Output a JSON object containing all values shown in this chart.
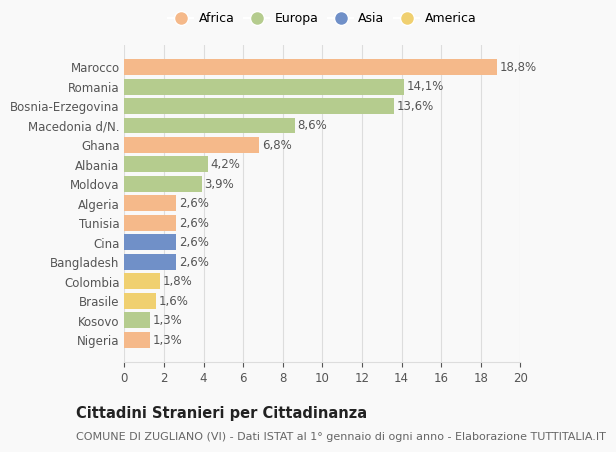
{
  "countries": [
    "Marocco",
    "Romania",
    "Bosnia-Erzegovina",
    "Macedonia d/N.",
    "Ghana",
    "Albania",
    "Moldova",
    "Algeria",
    "Tunisia",
    "Cina",
    "Bangladesh",
    "Colombia",
    "Brasile",
    "Kosovo",
    "Nigeria"
  ],
  "values": [
    18.8,
    14.1,
    13.6,
    8.6,
    6.8,
    4.2,
    3.9,
    2.6,
    2.6,
    2.6,
    2.6,
    1.8,
    1.6,
    1.3,
    1.3
  ],
  "labels": [
    "18,8%",
    "14,1%",
    "13,6%",
    "8,6%",
    "6,8%",
    "4,2%",
    "3,9%",
    "2,6%",
    "2,6%",
    "2,6%",
    "2,6%",
    "1,8%",
    "1,6%",
    "1,3%",
    "1,3%"
  ],
  "continents": [
    "Africa",
    "Europa",
    "Europa",
    "Europa",
    "Africa",
    "Europa",
    "Europa",
    "Africa",
    "Africa",
    "Asia",
    "Asia",
    "America",
    "America",
    "Europa",
    "Africa"
  ],
  "continent_colors": {
    "Africa": "#F5B98A",
    "Europa": "#B5CC8E",
    "Asia": "#7090C8",
    "America": "#F0D070"
  },
  "legend_order": [
    "Africa",
    "Europa",
    "Asia",
    "America"
  ],
  "title": "Cittadini Stranieri per Cittadinanza",
  "subtitle": "COMUNE DI ZUGLIANO (VI) - Dati ISTAT al 1° gennaio di ogni anno - Elaborazione TUTTITALIA.IT",
  "xlim": [
    0,
    20
  ],
  "xticks": [
    0,
    2,
    4,
    6,
    8,
    10,
    12,
    14,
    16,
    18,
    20
  ],
  "background_color": "#f9f9f9",
  "bar_height": 0.82,
  "grid_color": "#dddddd",
  "label_fontsize": 8.5,
  "tick_label_fontsize": 8.5,
  "title_fontsize": 10.5,
  "subtitle_fontsize": 8
}
